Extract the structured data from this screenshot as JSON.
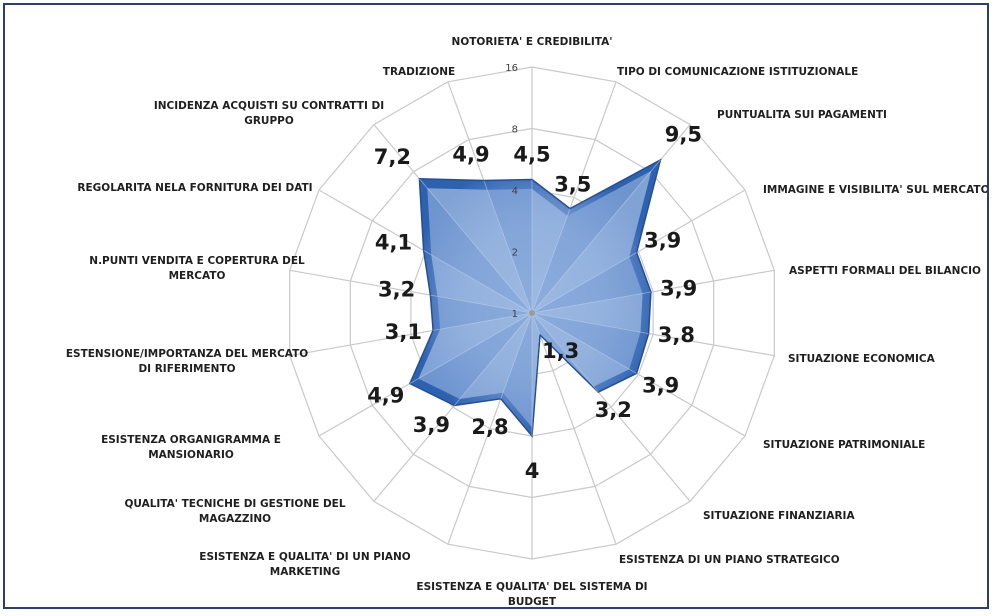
{
  "chart_data": {
    "type": "radar",
    "title": "",
    "scale": "log",
    "rlim": [
      1,
      16
    ],
    "ticks": [
      "1",
      "2",
      "4",
      "8",
      "16"
    ],
    "tick_values": [
      1,
      2,
      4,
      8,
      16
    ],
    "grid": true,
    "categories": [
      "NOTORIETA' E CREDIBILITA'",
      "TIPO DI COMUNICAZIONE ISTITUZIONALE",
      "PUNTUALITA SUI PAGAMENTI",
      "IMMAGINE E VISIBILITA' SUL MERCATO",
      "ASPETTI FORMALI DEL BILANCIO",
      "SITUAZIONE ECONOMICA",
      "SITUAZIONE PATRIMONIALE",
      "SITUAZIONE FINANZIARIA",
      "ESISTENZA DI UN PIANO STRATEGICO",
      "ESISTENZA  E QUALITA' DEL SISTEMA DI BUDGET",
      "ESISTENZA E QUALITA' DI UN PIANO MARKETING",
      "QUALITA' TECNICHE DI GESTIONE DEL MAGAZZINO",
      "ESISTENZA ORGANIGRAMMA  E MANSIONARIO",
      "ESTENSIONE/IMPORTANZA DEL MERCATO DI RIFERIMENTO",
      "N.PUNTI VENDITA E COPERTURA  DEL MERCATO",
      "REGOLARITA  NELA FORNITURA DEI DATI",
      "INCIDENZA ACQUISTI SU CONTRATTI  DI GRUPPO",
      "TRADIZIONE"
    ],
    "series": [
      {
        "name": "",
        "values": [
          4.5,
          3.5,
          9.5,
          3.9,
          3.9,
          3.8,
          3.9,
          3.2,
          1.3,
          4,
          2.8,
          3.9,
          4.9,
          3.1,
          3.2,
          4.1,
          7.2,
          4.9
        ],
        "labels": [
          "4,5",
          "3,5",
          "9,5",
          "3,9",
          "3,9",
          "3,8",
          "3,9",
          "3,2",
          "1,3",
          "4",
          "2,8",
          "3,9",
          "4,9",
          "3,1",
          "3,2",
          "4,1",
          "7,2",
          "4,9"
        ]
      }
    ],
    "colors": {
      "fill_outer": "#2e62b1",
      "fill_inner": "#8eaedb",
      "grid": "#c9c9c9",
      "frame": "#2d3e69"
    }
  }
}
